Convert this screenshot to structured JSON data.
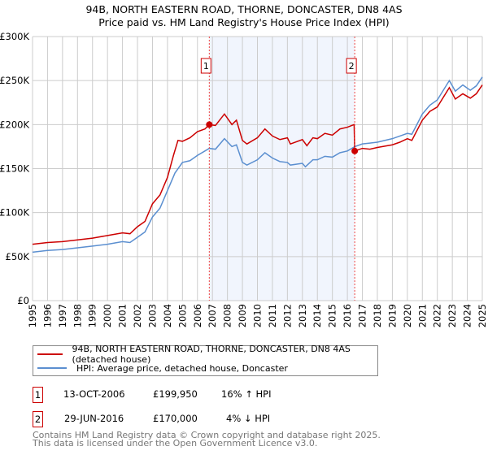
{
  "title": "94B, NORTH EASTERN ROAD, THORNE, DONCASTER, DN8 4AS",
  "subtitle": "Price paid vs. HM Land Registry's House Price Index (HPI)",
  "chart_data": {
    "type": "line",
    "title": "94B, NORTH EASTERN ROAD, THORNE, DONCASTER, DN8 4AS — Price paid vs. HM Land Registry's House Price Index (HPI)",
    "xlim": [
      1995,
      2025
    ],
    "ylim": [
      0,
      300000
    ],
    "y_ticks": [
      {
        "v": 0,
        "label": "£0"
      },
      {
        "v": 50000,
        "label": "£50K"
      },
      {
        "v": 100000,
        "label": "£100K"
      },
      {
        "v": 150000,
        "label": "£150K"
      },
      {
        "v": 200000,
        "label": "£200K"
      },
      {
        "v": 250000,
        "label": "£250K"
      },
      {
        "v": 300000,
        "label": "£300K"
      }
    ],
    "x_ticks": [
      "1995",
      "1996",
      "1997",
      "1998",
      "1999",
      "2000",
      "2001",
      "2002",
      "2003",
      "2004",
      "2005",
      "2006",
      "2007",
      "2008",
      "2009",
      "2010",
      "2011",
      "2012",
      "2013",
      "2014",
      "2015",
      "2016",
      "2017",
      "2018",
      "2019",
      "2020",
      "2021",
      "2022",
      "2023",
      "2024",
      "2025"
    ],
    "grid": true,
    "shaded_range": [
      2006.79,
      2016.49
    ],
    "series": [
      {
        "name": "94B, NORTH EASTERN ROAD, THORNE, DONCASTER, DN8 4AS (detached house)",
        "color": "#cc0000",
        "points": [
          [
            1995,
            64000
          ],
          [
            1996,
            66000
          ],
          [
            1997,
            67000
          ],
          [
            1998,
            69000
          ],
          [
            1999,
            71000
          ],
          [
            2000,
            74000
          ],
          [
            2001,
            77000
          ],
          [
            2001.5,
            76000
          ],
          [
            2002,
            84000
          ],
          [
            2002.5,
            90000
          ],
          [
            2003,
            110000
          ],
          [
            2003.5,
            120000
          ],
          [
            2004,
            140000
          ],
          [
            2004.4,
            165000
          ],
          [
            2004.7,
            182000
          ],
          [
            2005,
            181000
          ],
          [
            2005.5,
            185000
          ],
          [
            2006,
            192000
          ],
          [
            2006.5,
            195000
          ],
          [
            2006.79,
            199950
          ],
          [
            2007.2,
            199000
          ],
          [
            2007.8,
            212000
          ],
          [
            2008.3,
            200000
          ],
          [
            2008.6,
            205000
          ],
          [
            2009,
            182000
          ],
          [
            2009.3,
            178000
          ],
          [
            2010,
            185000
          ],
          [
            2010.5,
            195000
          ],
          [
            2011,
            187000
          ],
          [
            2011.5,
            183000
          ],
          [
            2012,
            185000
          ],
          [
            2012.2,
            178000
          ],
          [
            2013,
            183000
          ],
          [
            2013.3,
            176000
          ],
          [
            2013.7,
            185000
          ],
          [
            2014,
            184000
          ],
          [
            2014.5,
            190000
          ],
          [
            2015,
            188000
          ],
          [
            2015.5,
            195000
          ],
          [
            2016,
            197000
          ],
          [
            2016.45,
            200000
          ],
          [
            2016.49,
            170000
          ],
          [
            2017,
            173000
          ],
          [
            2017.5,
            172000
          ],
          [
            2018,
            174000
          ],
          [
            2019,
            177000
          ],
          [
            2019.5,
            180000
          ],
          [
            2020,
            184000
          ],
          [
            2020.3,
            182000
          ],
          [
            2021,
            205000
          ],
          [
            2021.5,
            215000
          ],
          [
            2022,
            220000
          ],
          [
            2022.8,
            242000
          ],
          [
            2023.2,
            229000
          ],
          [
            2023.7,
            235000
          ],
          [
            2024.2,
            230000
          ],
          [
            2024.6,
            235000
          ],
          [
            2025,
            245000
          ]
        ]
      },
      {
        "name": "HPI: Average price, detached house, Doncaster",
        "color": "#5b8fd0",
        "points": [
          [
            1995,
            55000
          ],
          [
            1996,
            57000
          ],
          [
            1997,
            58000
          ],
          [
            1998,
            60000
          ],
          [
            1999,
            62000
          ],
          [
            2000,
            64000
          ],
          [
            2001,
            67000
          ],
          [
            2001.5,
            66000
          ],
          [
            2002,
            72000
          ],
          [
            2002.5,
            78000
          ],
          [
            2003,
            95000
          ],
          [
            2003.5,
            105000
          ],
          [
            2004,
            125000
          ],
          [
            2004.5,
            145000
          ],
          [
            2005,
            157000
          ],
          [
            2005.5,
            159000
          ],
          [
            2006,
            165000
          ],
          [
            2006.5,
            170000
          ],
          [
            2006.79,
            173000
          ],
          [
            2007.2,
            172000
          ],
          [
            2007.8,
            184000
          ],
          [
            2008.3,
            175000
          ],
          [
            2008.6,
            177000
          ],
          [
            2009,
            157000
          ],
          [
            2009.3,
            154000
          ],
          [
            2010,
            160000
          ],
          [
            2010.5,
            168000
          ],
          [
            2011,
            162000
          ],
          [
            2011.5,
            158000
          ],
          [
            2012,
            157000
          ],
          [
            2012.2,
            154000
          ],
          [
            2013,
            156000
          ],
          [
            2013.2,
            152000
          ],
          [
            2013.7,
            160000
          ],
          [
            2014,
            160000
          ],
          [
            2014.5,
            164000
          ],
          [
            2015,
            163000
          ],
          [
            2015.5,
            168000
          ],
          [
            2016,
            170000
          ],
          [
            2016.5,
            175000
          ],
          [
            2017,
            178000
          ],
          [
            2017.5,
            179000
          ],
          [
            2018,
            180000
          ],
          [
            2019,
            184000
          ],
          [
            2019.5,
            187000
          ],
          [
            2020,
            190000
          ],
          [
            2020.3,
            189000
          ],
          [
            2021,
            212000
          ],
          [
            2021.5,
            222000
          ],
          [
            2022,
            228000
          ],
          [
            2022.8,
            250000
          ],
          [
            2023.2,
            238000
          ],
          [
            2023.7,
            245000
          ],
          [
            2024.2,
            239000
          ],
          [
            2024.6,
            244000
          ],
          [
            2025,
            254000
          ]
        ]
      }
    ],
    "sales": [
      {
        "id": "1",
        "x": 2006.79,
        "y": 199950
      },
      {
        "id": "2",
        "x": 2016.49,
        "y": 170000
      }
    ]
  },
  "legend": {
    "red": "94B, NORTH EASTERN ROAD, THORNE, DONCASTER, DN8 4AS (detached house)",
    "blue": "HPI: Average price, detached house, Doncaster"
  },
  "transactions": [
    {
      "id": "1",
      "date": "13-OCT-2006",
      "price": "£199,950",
      "hpi": "16% ↑ HPI"
    },
    {
      "id": "2",
      "date": "29-JUN-2016",
      "price": "£170,000",
      "hpi": "4% ↓ HPI"
    }
  ],
  "footer": [
    "Contains HM Land Registry data © Crown copyright and database right 2025.",
    "This data is licensed under the Open Government Licence v3.0."
  ]
}
